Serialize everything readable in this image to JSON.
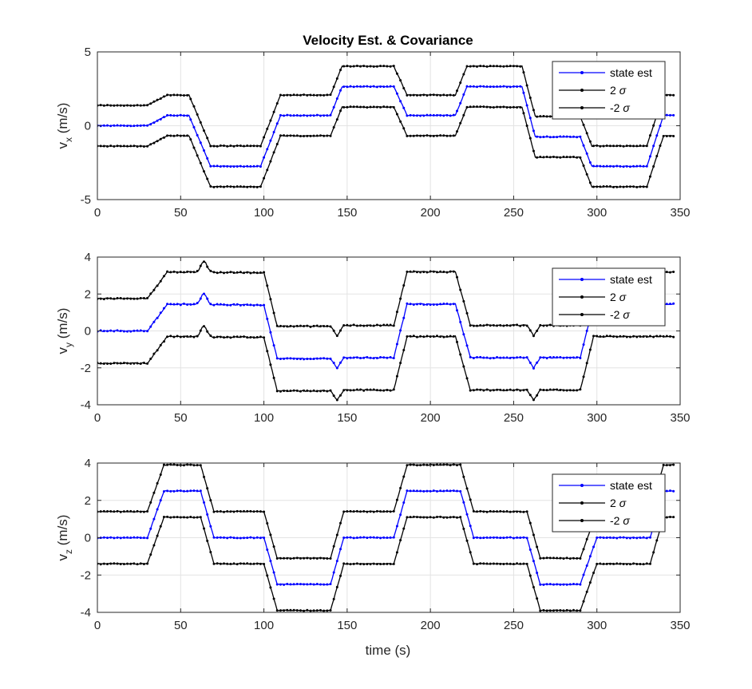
{
  "figure": {
    "title": "Velocity Est. & Covariance",
    "xlabel": "time (s)"
  },
  "chart_data": [
    {
      "type": "line",
      "title": "Velocity Est. & Covariance",
      "ylabel_base": "v",
      "ylabel_sub": "x",
      "ylabel_unit": "(m/s)",
      "xlabel": "",
      "xlim": [
        0,
        350
      ],
      "ylim": [
        -5,
        5
      ],
      "xticks": [
        0,
        50,
        100,
        150,
        200,
        250,
        300,
        350
      ],
      "yticks": [
        -5,
        0,
        5
      ],
      "grid": true,
      "legend": {
        "position": "top-right",
        "entries": [
          "state est",
          "2 σ",
          "-2 σ"
        ]
      },
      "sigma_offset": 1.38,
      "noise": 0.05,
      "est_knots": [
        [
          0,
          0
        ],
        [
          30,
          0
        ],
        [
          42,
          0.7
        ],
        [
          55,
          0.7
        ],
        [
          68,
          -2.75
        ],
        [
          98,
          -2.75
        ],
        [
          110,
          0.7
        ],
        [
          140,
          0.7
        ],
        [
          147,
          2.65
        ],
        [
          178,
          2.65
        ],
        [
          186,
          0.7
        ],
        [
          215,
          0.7
        ],
        [
          222,
          2.65
        ],
        [
          255,
          2.65
        ],
        [
          263,
          -0.75
        ],
        [
          290,
          -0.75
        ],
        [
          297,
          -2.75
        ],
        [
          330,
          -2.75
        ],
        [
          340,
          0.7
        ],
        [
          345,
          0.7
        ]
      ],
      "bump_center": 0,
      "bump_height": 0,
      "bump_width": 0,
      "series": [
        {
          "name": "state est",
          "color": "#0000ff"
        },
        {
          "name": "2 σ",
          "color": "#000000"
        },
        {
          "name": "-2 σ",
          "color": "#000000"
        }
      ]
    },
    {
      "type": "line",
      "title": "",
      "ylabel_base": "v",
      "ylabel_sub": "y",
      "ylabel_unit": "(m/s)",
      "xlabel": "",
      "xlim": [
        0,
        350
      ],
      "ylim": [
        -4,
        4
      ],
      "xticks": [
        0,
        50,
        100,
        150,
        200,
        250,
        300,
        350
      ],
      "yticks": [
        -4,
        -2,
        0,
        2,
        4
      ],
      "grid": true,
      "legend": {
        "position": "top-right",
        "entries": [
          "state est",
          "2 σ",
          "-2 σ"
        ]
      },
      "sigma_offset": 1.75,
      "noise": 0.06,
      "est_knots": [
        [
          0,
          0
        ],
        [
          30,
          0
        ],
        [
          42,
          1.45
        ],
        [
          100,
          1.4
        ],
        [
          108,
          -1.5
        ],
        [
          140,
          -1.5
        ],
        [
          144,
          -2.0
        ],
        [
          148,
          -1.45
        ],
        [
          178,
          -1.45
        ],
        [
          186,
          1.45
        ],
        [
          215,
          1.45
        ],
        [
          224,
          -1.45
        ],
        [
          258,
          -1.45
        ],
        [
          262,
          -2.0
        ],
        [
          266,
          -1.45
        ],
        [
          290,
          -1.45
        ],
        [
          298,
          1.45
        ],
        [
          345,
          1.45
        ]
      ],
      "bump_center": 64,
      "bump_height": 0.6,
      "bump_width": 2.5,
      "series": [
        {
          "name": "state est",
          "color": "#0000ff"
        },
        {
          "name": "2 σ",
          "color": "#000000"
        },
        {
          "name": "-2 σ",
          "color": "#000000"
        }
      ]
    },
    {
      "type": "line",
      "title": "",
      "ylabel_base": "v",
      "ylabel_sub": "z",
      "ylabel_unit": "(m/s)",
      "xlabel": "time (s)",
      "xlim": [
        0,
        350
      ],
      "ylim": [
        -4,
        4
      ],
      "xticks": [
        0,
        50,
        100,
        150,
        200,
        250,
        300,
        350
      ],
      "yticks": [
        -4,
        -2,
        0,
        2,
        4
      ],
      "grid": true,
      "legend": {
        "position": "top-right",
        "entries": [
          "state est",
          "2 σ",
          "-2 σ"
        ]
      },
      "sigma_offset": 1.4,
      "noise": 0.04,
      "est_knots": [
        [
          0,
          0
        ],
        [
          30,
          0
        ],
        [
          40,
          2.5
        ],
        [
          62,
          2.5
        ],
        [
          70,
          0
        ],
        [
          100,
          0
        ],
        [
          108,
          -2.5
        ],
        [
          140,
          -2.5
        ],
        [
          148,
          0
        ],
        [
          178,
          0
        ],
        [
          186,
          2.5
        ],
        [
          218,
          2.5
        ],
        [
          226,
          0
        ],
        [
          258,
          0
        ],
        [
          266,
          -2.5
        ],
        [
          290,
          -2.5
        ],
        [
          300,
          0
        ],
        [
          332,
          0
        ],
        [
          340,
          2.5
        ],
        [
          345,
          2.5
        ]
      ],
      "bump_center": 0,
      "bump_height": 0,
      "bump_width": 0,
      "series": [
        {
          "name": "state est",
          "color": "#0000ff"
        },
        {
          "name": "2 σ",
          "color": "#000000"
        },
        {
          "name": "-2 σ",
          "color": "#000000"
        }
      ]
    }
  ]
}
